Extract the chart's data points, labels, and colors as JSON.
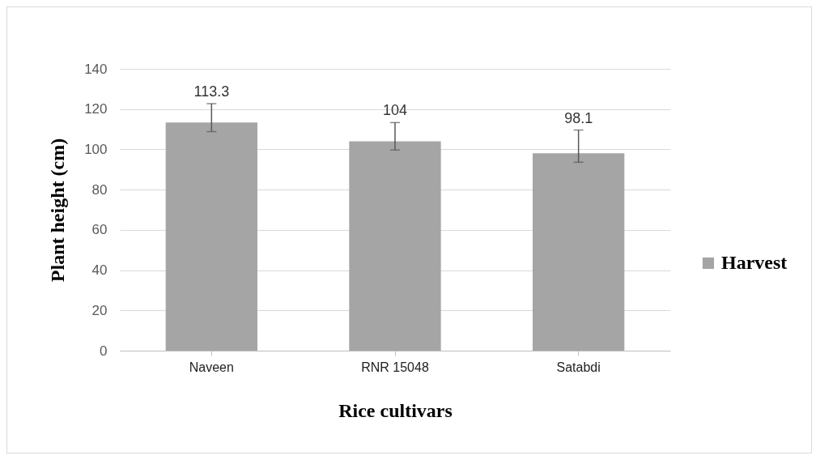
{
  "chart_data": {
    "type": "bar",
    "xlabel": "Rice cultivars",
    "ylabel": "Plant height (cm)",
    "categories": [
      "Naveen",
      "RNR 15048",
      "Satabdi"
    ],
    "series": [
      {
        "name": "Harvest",
        "color": "#a5a5a5",
        "values": [
          113.3,
          104,
          98.1
        ],
        "errors": [
          [
            108.8,
            122.7
          ],
          [
            99.7,
            113.3
          ],
          [
            93.6,
            109.6
          ]
        ]
      }
    ],
    "data_labels": true,
    "ylim": [
      0,
      140
    ],
    "yticks": [
      0,
      20,
      40,
      60,
      80,
      100,
      120,
      140
    ],
    "grid": "y",
    "legend": "right"
  }
}
